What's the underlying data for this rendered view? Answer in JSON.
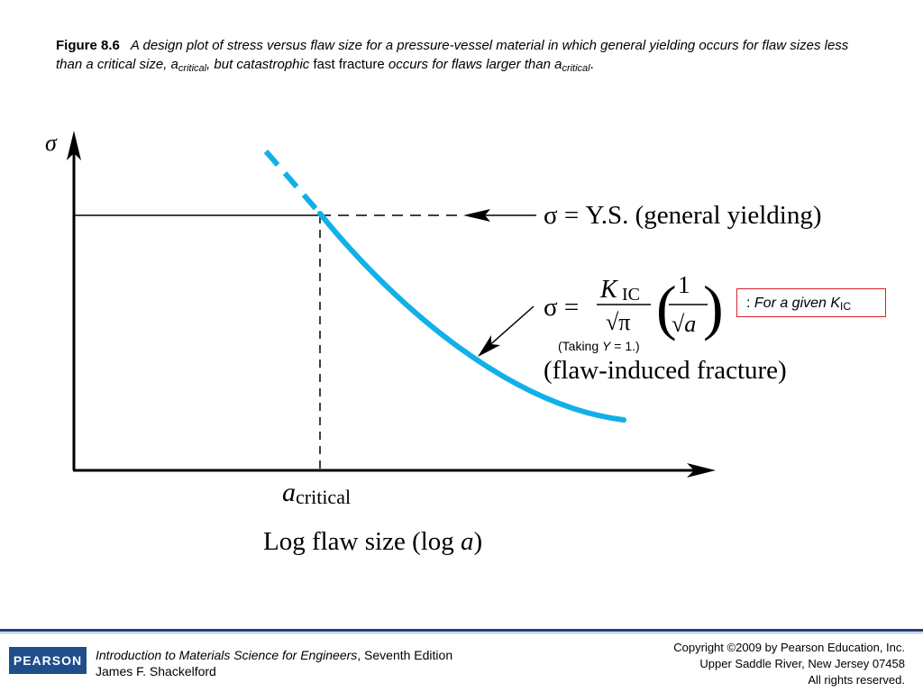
{
  "caption": {
    "figure_label": "Figure 8.6",
    "text_1": "A design plot of stress versus flaw size for a pressure-vessel material in which general yielding occurs for flaw sizes less than a critical size, a",
    "sub_1": "critical",
    "text_2": ", but catastrophic ",
    "text_3": "fast fracture",
    "text_4": " occurs for flaws larger than a",
    "sub_2": "critical",
    "text_5": "."
  },
  "diagram": {
    "y_axis_symbol": "σ",
    "yield_label": "σ = Y.S. (general yielding)",
    "eq_sigma": "σ =",
    "eq_K": "K",
    "eq_K_sub": "IC",
    "eq_sqrt_pi": "√π",
    "eq_one": "1",
    "eq_sqrt_a": "√a",
    "fracture_label": "(flaw-induced fracture)",
    "a_critical_main": "a",
    "a_critical_sub": "critical",
    "x_axis_label_1": "Log flaw size (log ",
    "x_axis_label_a": "a",
    "x_axis_label_2": ")",
    "curve_color": "#12b0e8"
  },
  "annotation": {
    "prefix": ": ",
    "text": "For a given K",
    "sub": "IC"
  },
  "taking_note": {
    "part_1": "(Taking ",
    "part_y": "Y",
    "part_2": " = 1.)"
  },
  "footer": {
    "logo_text": "PEARSON",
    "book_title": "Introduction to Materials Science for Engineers",
    "book_edition": ", Seventh Edition",
    "author": "James F. Shackelford",
    "copyright_1": "Copyright ©2009 by Pearson Education, Inc.",
    "copyright_2": "Upper Saddle River, New Jersey 07458",
    "copyright_3": "All rights reserved."
  }
}
